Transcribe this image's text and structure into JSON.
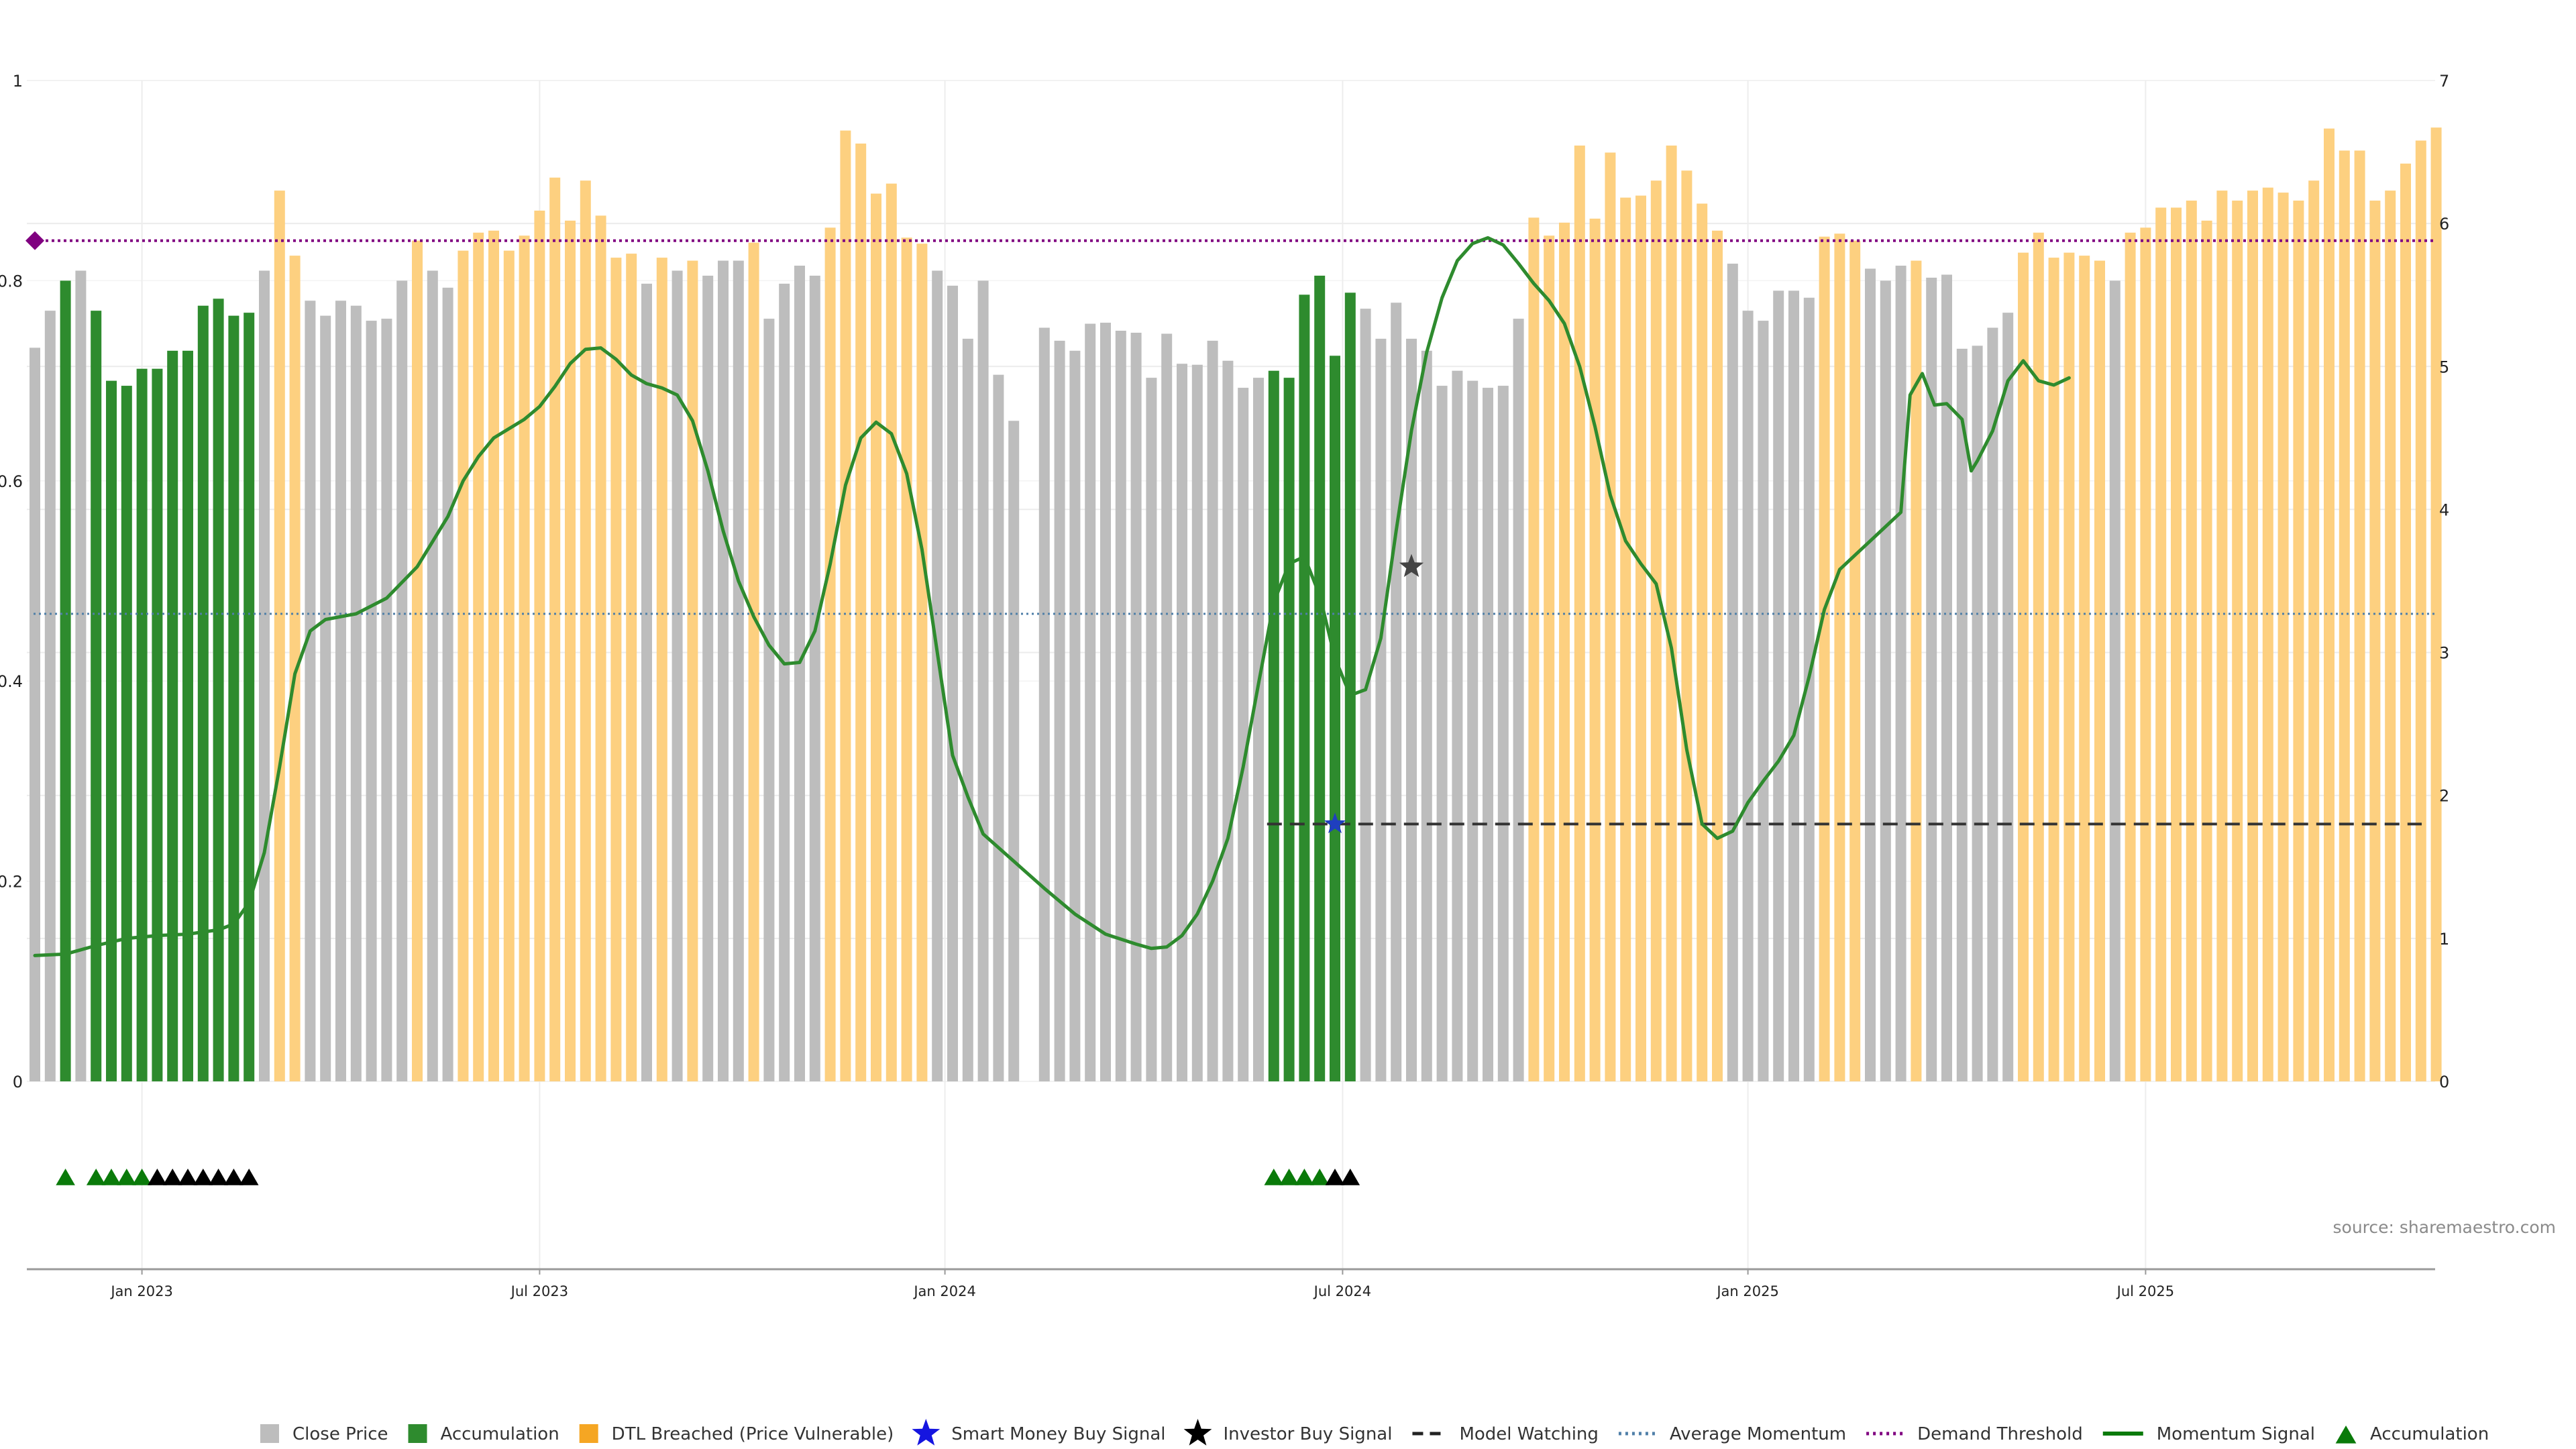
{
  "source_note": "source: sharemaestro.com",
  "colors": {
    "close_price": "#bdbdbd",
    "accumulation": "#2e8b2e",
    "dtl_breached": "#fdd080",
    "momentum": "#2e8b2e",
    "avg_momentum": "#4f7fa8",
    "demand": "#800080",
    "model_watching": "#333333",
    "investor_star": "#444444",
    "smart_money_star": "#1f3fbf",
    "acc_triangle": "#0a7a0a",
    "black_triangle": "#000000"
  },
  "legend": [
    {
      "key": "close",
      "label": "Close Price",
      "symbol": "square-grey"
    },
    {
      "key": "acc",
      "label": "Accumulation",
      "symbol": "square-green"
    },
    {
      "key": "dtl",
      "label": "DTL Breached (Price Vulnerable)",
      "symbol": "square-orange"
    },
    {
      "key": "smart",
      "label": "Smart Money Buy Signal",
      "symbol": "star-blue"
    },
    {
      "key": "investor",
      "label": "Investor Buy Signal",
      "symbol": "star-black"
    },
    {
      "key": "watch",
      "label": "Model Watching",
      "symbol": "dash-black"
    },
    {
      "key": "avg",
      "label": "Average Momentum",
      "symbol": "dot-blue"
    },
    {
      "key": "demand",
      "label": "Demand Threshold",
      "symbol": "dot-purple"
    },
    {
      "key": "mom",
      "label": "Momentum Signal",
      "symbol": "line-green"
    },
    {
      "key": "acc2",
      "label": "Accumulation",
      "symbol": "triangle-green"
    }
  ],
  "chart_data": {
    "type": "bar",
    "x_axis": {
      "ticks": [
        "Jan 2023",
        "Jul 2023",
        "Jan 2024",
        "Jul 2024",
        "Jan 2025",
        "Jul 2025"
      ],
      "tick_bar_index": [
        7,
        33,
        59.5,
        85.5,
        112,
        138
      ]
    },
    "y_left": {
      "ylim": [
        0,
        1
      ],
      "ticks": [
        "0",
        "0.2",
        "0.4",
        "0.6",
        "0.8",
        "1"
      ],
      "tick_values": [
        0,
        0.2,
        0.4,
        0.6,
        0.8,
        1
      ]
    },
    "y_right": {
      "ylim": [
        0,
        7
      ],
      "ticks": [
        "0",
        "1",
        "2",
        "3",
        "4",
        "5",
        "6",
        "7"
      ],
      "tick_values": [
        0,
        1,
        2,
        3,
        4,
        5,
        6,
        7
      ]
    },
    "grid": true,
    "legend_position": "bottom",
    "bar_categories": [
      "close",
      "acc",
      "dtl"
    ],
    "bars": [
      [
        "close",
        0.733
      ],
      [
        "close",
        0.77
      ],
      [
        "acc",
        0.8
      ],
      [
        "close",
        0.81
      ],
      [
        "acc",
        0.77
      ],
      [
        "acc",
        0.7
      ],
      [
        "acc",
        0.695
      ],
      [
        "acc",
        0.712
      ],
      [
        "acc",
        0.712
      ],
      [
        "acc",
        0.73
      ],
      [
        "acc",
        0.73
      ],
      [
        "acc",
        0.775
      ],
      [
        "acc",
        0.782
      ],
      [
        "acc",
        0.765
      ],
      [
        "acc",
        0.768
      ],
      [
        "close",
        0.81
      ],
      [
        "dtl",
        0.89
      ],
      [
        "dtl",
        0.825
      ],
      [
        "close",
        0.78
      ],
      [
        "close",
        0.765
      ],
      [
        "close",
        0.78
      ],
      [
        "close",
        0.775
      ],
      [
        "close",
        0.76
      ],
      [
        "close",
        0.762
      ],
      [
        "close",
        0.8
      ],
      [
        "dtl",
        0.84
      ],
      [
        "close",
        0.81
      ],
      [
        "close",
        0.793
      ],
      [
        "dtl",
        0.83
      ],
      [
        "dtl",
        0.848
      ],
      [
        "dtl",
        0.85
      ],
      [
        "dtl",
        0.83
      ],
      [
        "dtl",
        0.845
      ],
      [
        "dtl",
        0.87
      ],
      [
        "dtl",
        0.903
      ],
      [
        "dtl",
        0.86
      ],
      [
        "dtl",
        0.9
      ],
      [
        "dtl",
        0.865
      ],
      [
        "dtl",
        0.823
      ],
      [
        "dtl",
        0.827
      ],
      [
        "close",
        0.797
      ],
      [
        "dtl",
        0.823
      ],
      [
        "close",
        0.81
      ],
      [
        "dtl",
        0.82
      ],
      [
        "close",
        0.805
      ],
      [
        "close",
        0.82
      ],
      [
        "close",
        0.82
      ],
      [
        "dtl",
        0.838
      ],
      [
        "close",
        0.762
      ],
      [
        "close",
        0.797
      ],
      [
        "close",
        0.815
      ],
      [
        "close",
        0.805
      ],
      [
        "dtl",
        0.853
      ],
      [
        "dtl",
        0.95
      ],
      [
        "dtl",
        0.937
      ],
      [
        "dtl",
        0.887
      ],
      [
        "dtl",
        0.897
      ],
      [
        "dtl",
        0.843
      ],
      [
        "dtl",
        0.837
      ],
      [
        "close",
        0.81
      ],
      [
        "close",
        0.795
      ],
      [
        "close",
        0.742
      ],
      [
        "close",
        0.8
      ],
      [
        "close",
        0.706
      ],
      [
        "close",
        0.66
      ],
      [
        "close",
        0.0
      ],
      [
        "close",
        0.753
      ],
      [
        "close",
        0.74
      ],
      [
        "close",
        0.73
      ],
      [
        "close",
        0.757
      ],
      [
        "close",
        0.758
      ],
      [
        "close",
        0.75
      ],
      [
        "close",
        0.748
      ],
      [
        "close",
        0.703
      ],
      [
        "close",
        0.747
      ],
      [
        "close",
        0.717
      ],
      [
        "close",
        0.716
      ],
      [
        "close",
        0.74
      ],
      [
        "close",
        0.72
      ],
      [
        "close",
        0.693
      ],
      [
        "close",
        0.703
      ],
      [
        "acc",
        0.71
      ],
      [
        "acc",
        0.703
      ],
      [
        "acc",
        0.786
      ],
      [
        "acc",
        0.805
      ],
      [
        "acc",
        0.725
      ],
      [
        "acc",
        0.788
      ],
      [
        "close",
        0.772
      ],
      [
        "close",
        0.742
      ],
      [
        "close",
        0.778
      ],
      [
        "close",
        0.742
      ],
      [
        "close",
        0.73
      ],
      [
        "close",
        0.695
      ],
      [
        "close",
        0.71
      ],
      [
        "close",
        0.7
      ],
      [
        "close",
        0.693
      ],
      [
        "close",
        0.695
      ],
      [
        "close",
        0.762
      ],
      [
        "dtl",
        0.863
      ],
      [
        "dtl",
        0.845
      ],
      [
        "dtl",
        0.858
      ],
      [
        "dtl",
        0.935
      ],
      [
        "dtl",
        0.862
      ],
      [
        "dtl",
        0.928
      ],
      [
        "dtl",
        0.883
      ],
      [
        "dtl",
        0.885
      ],
      [
        "dtl",
        0.9
      ],
      [
        "dtl",
        0.935
      ],
      [
        "dtl",
        0.91
      ],
      [
        "dtl",
        0.877
      ],
      [
        "dtl",
        0.85
      ],
      [
        "close",
        0.817
      ],
      [
        "close",
        0.77
      ],
      [
        "close",
        0.76
      ],
      [
        "close",
        0.79
      ],
      [
        "close",
        0.79
      ],
      [
        "close",
        0.783
      ],
      [
        "dtl",
        0.844
      ],
      [
        "dtl",
        0.847
      ],
      [
        "dtl",
        0.84
      ],
      [
        "close",
        0.812
      ],
      [
        "close",
        0.8
      ],
      [
        "close",
        0.815
      ],
      [
        "dtl",
        0.82
      ],
      [
        "close",
        0.803
      ],
      [
        "close",
        0.806
      ],
      [
        "close",
        0.732
      ],
      [
        "close",
        0.735
      ],
      [
        "close",
        0.753
      ],
      [
        "close",
        0.768
      ],
      [
        "dtl",
        0.828
      ],
      [
        "dtl",
        0.848
      ],
      [
        "dtl",
        0.823
      ],
      [
        "dtl",
        0.828
      ],
      [
        "dtl",
        0.825
      ],
      [
        "dtl",
        0.82
      ],
      [
        "close",
        0.8
      ],
      [
        "dtl",
        0.848
      ],
      [
        "dtl",
        0.853
      ],
      [
        "dtl",
        0.873
      ],
      [
        "dtl",
        0.873
      ],
      [
        "dtl",
        0.88
      ],
      [
        "dtl",
        0.86
      ],
      [
        "dtl",
        0.89
      ],
      [
        "dtl",
        0.88
      ],
      [
        "dtl",
        0.89
      ],
      [
        "dtl",
        0.893
      ],
      [
        "dtl",
        0.888
      ],
      [
        "dtl",
        0.88
      ],
      [
        "dtl",
        0.9
      ],
      [
        "dtl",
        0.952
      ],
      [
        "dtl",
        0.93
      ],
      [
        "dtl",
        0.93
      ],
      [
        "dtl",
        0.88
      ],
      [
        "dtl",
        0.89
      ],
      [
        "dtl",
        0.917
      ],
      [
        "dtl",
        0.94
      ],
      [
        "dtl",
        0.953
      ]
    ],
    "momentum_signal": [
      [
        0,
        0.88
      ],
      [
        2,
        0.89
      ],
      [
        4,
        0.95
      ],
      [
        6,
        1.0
      ],
      [
        8,
        1.02
      ],
      [
        10,
        1.03
      ],
      [
        12,
        1.06
      ],
      [
        13,
        1.1
      ],
      [
        14,
        1.25
      ],
      [
        15,
        1.6
      ],
      [
        16,
        2.2
      ],
      [
        17,
        2.85
      ],
      [
        18,
        3.15
      ],
      [
        19,
        3.23
      ],
      [
        21,
        3.27
      ],
      [
        23,
        3.38
      ],
      [
        25,
        3.6
      ],
      [
        27,
        3.95
      ],
      [
        28,
        4.2
      ],
      [
        29,
        4.37
      ],
      [
        30,
        4.5
      ],
      [
        32,
        4.63
      ],
      [
        33,
        4.72
      ],
      [
        34,
        4.86
      ],
      [
        35,
        5.02
      ],
      [
        36,
        5.12
      ],
      [
        37,
        5.13
      ],
      [
        38,
        5.05
      ],
      [
        39,
        4.94
      ],
      [
        40,
        4.88
      ],
      [
        41,
        4.85
      ],
      [
        42,
        4.8
      ],
      [
        43,
        4.62
      ],
      [
        44,
        4.27
      ],
      [
        45,
        3.85
      ],
      [
        46,
        3.5
      ],
      [
        47,
        3.25
      ],
      [
        48,
        3.05
      ],
      [
        49,
        2.92
      ],
      [
        50,
        2.93
      ],
      [
        51,
        3.15
      ],
      [
        52,
        3.62
      ],
      [
        53,
        4.17
      ],
      [
        54,
        4.5
      ],
      [
        55,
        4.61
      ],
      [
        56,
        4.53
      ],
      [
        57,
        4.25
      ],
      [
        58,
        3.72
      ],
      [
        59,
        3.0
      ],
      [
        60,
        2.28
      ],
      [
        61,
        1.99
      ],
      [
        62,
        1.73
      ],
      [
        64,
        1.54
      ],
      [
        66,
        1.35
      ],
      [
        68,
        1.17
      ],
      [
        70,
        1.03
      ],
      [
        72,
        0.96
      ],
      [
        73,
        0.93
      ],
      [
        74,
        0.94
      ],
      [
        75,
        1.02
      ],
      [
        76,
        1.17
      ],
      [
        77,
        1.4
      ],
      [
        78,
        1.7
      ],
      [
        79,
        2.2
      ],
      [
        80,
        2.78
      ],
      [
        81,
        3.35
      ],
      [
        82,
        3.62
      ],
      [
        83,
        3.67
      ],
      [
        84,
        3.4
      ],
      [
        85,
        2.96
      ],
      [
        86,
        2.7
      ],
      [
        87,
        2.74
      ],
      [
        88,
        3.1
      ],
      [
        89,
        3.85
      ],
      [
        90,
        4.55
      ],
      [
        91,
        5.1
      ],
      [
        92,
        5.48
      ],
      [
        93,
        5.74
      ],
      [
        94,
        5.86
      ],
      [
        95,
        5.9
      ],
      [
        96,
        5.85
      ],
      [
        97,
        5.72
      ],
      [
        98,
        5.58
      ],
      [
        99,
        5.46
      ],
      [
        100,
        5.3
      ],
      [
        101,
        5.0
      ],
      [
        102,
        4.58
      ],
      [
        103,
        4.1
      ],
      [
        104,
        3.78
      ],
      [
        105,
        3.62
      ],
      [
        106,
        3.48
      ],
      [
        107,
        3.03
      ],
      [
        108,
        2.32
      ],
      [
        109,
        1.8
      ],
      [
        110,
        1.7
      ],
      [
        111,
        1.75
      ],
      [
        112,
        1.95
      ],
      [
        113,
        2.1
      ],
      [
        114,
        2.24
      ],
      [
        115,
        2.42
      ],
      [
        116,
        2.83
      ],
      [
        117,
        3.3
      ],
      [
        118,
        3.58
      ],
      [
        119,
        3.68
      ],
      [
        120,
        3.78
      ],
      [
        121,
        3.88
      ],
      [
        122,
        3.98
      ],
      [
        122.6,
        4.8
      ],
      [
        123.4,
        4.95
      ],
      [
        124.2,
        4.73
      ],
      [
        125,
        4.74
      ],
      [
        126,
        4.63
      ],
      [
        126.6,
        4.27
      ],
      [
        127,
        4.34
      ],
      [
        128,
        4.55
      ],
      [
        129,
        4.9
      ],
      [
        130,
        5.04
      ],
      [
        131,
        4.9
      ],
      [
        132,
        4.87
      ],
      [
        133,
        4.92
      ]
    ],
    "average_momentum": 3.27,
    "demand_threshold": 5.88,
    "model_watching": {
      "from_bar": 81,
      "value": 1.8
    },
    "smart_money_buy_signals": [
      {
        "bar": 85,
        "value": 1.8
      }
    ],
    "investor_buy_signals": [
      {
        "bar": 90,
        "value": 3.6
      }
    ],
    "accumulation_markers": {
      "green_bars": [
        2,
        4,
        5,
        6,
        7,
        81,
        82,
        83,
        84
      ],
      "black_bars": [
        8,
        9,
        10,
        11,
        12,
        13,
        14,
        85,
        86
      ]
    }
  }
}
